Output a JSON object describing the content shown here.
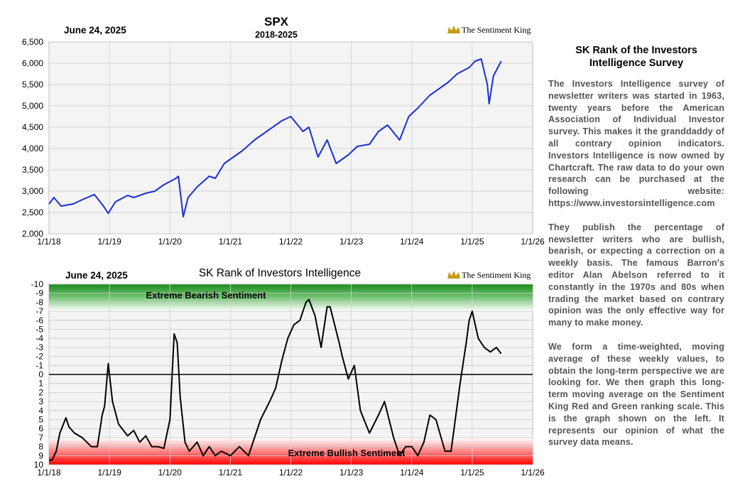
{
  "charts": [
    {
      "type": "line",
      "date_label": "June 24, 2025",
      "title": "SPX",
      "subtitle": "2018-2025",
      "brand": "The Sentiment King",
      "ylim": [
        2000,
        6500
      ],
      "yticks": [
        "2,000",
        "2,500",
        "3,000",
        "3,500",
        "4,000",
        "4,500",
        "5,000",
        "5,500",
        "6,000",
        "6,500"
      ],
      "xticks": [
        "1/1/18",
        "1/1/19",
        "1/1/20",
        "1/1/21",
        "1/1/22",
        "1/1/23",
        "1/1/24",
        "1/1/25",
        "1/1/26"
      ],
      "grid": true,
      "line_color": "#1a2fd6"
    },
    {
      "type": "line",
      "date_label": "June 24, 2025",
      "title": "SK Rank of Investors Intelligence",
      "brand": "The Sentiment King",
      "ylim": [
        -10,
        10
      ],
      "yaxis_inverted": true,
      "yticks": [
        "-10",
        "-9",
        "-8",
        "-7",
        "-6",
        "-5",
        "-4",
        "-3",
        "-2",
        "-1",
        "0",
        "1",
        "2",
        "3",
        "4",
        "5",
        "6",
        "7",
        "8",
        "9",
        "10"
      ],
      "xticks": [
        "1/1/18",
        "1/1/19",
        "1/1/20",
        "1/1/21",
        "1/1/22",
        "1/1/23",
        "1/1/24",
        "1/1/25",
        "1/1/26"
      ],
      "zone_top_label": "Extreme Bearish Sentiment",
      "zone_bottom_label": "Extreme Bullish Sentiment",
      "zone_top_color": "#1a8a1a",
      "zone_bottom_color": "#ff1a1a",
      "grid": true,
      "line_color": "#000000"
    }
  ],
  "chart_data": [
    {
      "type": "line",
      "title": "SPX",
      "subtitle": "2018-2025",
      "x_unit": "year",
      "x": [
        2018.0,
        2018.08,
        2018.2,
        2018.4,
        2018.55,
        2018.75,
        2018.9,
        2018.98,
        2019.1,
        2019.3,
        2019.4,
        2019.6,
        2019.75,
        2019.9,
        2020.1,
        2020.14,
        2020.22,
        2020.3,
        2020.45,
        2020.65,
        2020.75,
        2020.9,
        2021.0,
        2021.2,
        2021.4,
        2021.6,
        2021.85,
        2022.0,
        2022.2,
        2022.3,
        2022.45,
        2022.6,
        2022.75,
        2022.95,
        2023.1,
        2023.3,
        2023.45,
        2023.6,
        2023.8,
        2023.95,
        2024.1,
        2024.3,
        2024.5,
        2024.6,
        2024.75,
        2024.95,
        2025.05,
        2025.15,
        2025.25,
        2025.28,
        2025.35,
        2025.48
      ],
      "y": [
        2700,
        2850,
        2650,
        2700,
        2800,
        2920,
        2650,
        2480,
        2750,
        2900,
        2850,
        2950,
        3000,
        3150,
        3300,
        3350,
        2400,
        2850,
        3100,
        3350,
        3300,
        3650,
        3750,
        3950,
        4200,
        4400,
        4650,
        4750,
        4400,
        4500,
        3800,
        4200,
        3650,
        3850,
        4050,
        4100,
        4400,
        4550,
        4200,
        4750,
        4950,
        5250,
        5450,
        5550,
        5750,
        5900,
        6050,
        6100,
        5500,
        5050,
        5700,
        6050
      ],
      "ylim": [
        2000,
        6500
      ]
    },
    {
      "type": "line",
      "title": "SK Rank of Investors Intelligence",
      "x_unit": "year",
      "x": [
        2018.0,
        2018.05,
        2018.12,
        2018.18,
        2018.28,
        2018.33,
        2018.42,
        2018.55,
        2018.7,
        2018.8,
        2018.88,
        2018.92,
        2018.98,
        2019.05,
        2019.15,
        2019.3,
        2019.4,
        2019.5,
        2019.6,
        2019.7,
        2019.8,
        2019.9,
        2020.0,
        2020.07,
        2020.12,
        2020.17,
        2020.25,
        2020.32,
        2020.45,
        2020.55,
        2020.65,
        2020.75,
        2020.85,
        2021.0,
        2021.15,
        2021.3,
        2021.5,
        2021.65,
        2021.75,
        2021.85,
        2021.95,
        2022.05,
        2022.15,
        2022.25,
        2022.3,
        2022.4,
        2022.5,
        2022.6,
        2022.65,
        2022.8,
        2022.85,
        2022.95,
        2023.05,
        2023.15,
        2023.3,
        2023.45,
        2023.55,
        2023.7,
        2023.8,
        2023.9,
        2024.0,
        2024.1,
        2024.2,
        2024.3,
        2024.4,
        2024.55,
        2024.65,
        2024.8,
        2024.9,
        2024.95,
        2025.0,
        2025.1,
        2025.2,
        2025.3,
        2025.4,
        2025.48
      ],
      "y": [
        9.5,
        9.5,
        8.5,
        6.5,
        4.8,
        5.8,
        6.5,
        7.0,
        8.0,
        8.0,
        4.5,
        3.5,
        -1.2,
        3.0,
        5.5,
        6.8,
        6.2,
        7.5,
        6.8,
        8.0,
        8.0,
        8.2,
        5.0,
        -4.5,
        -3.5,
        2.5,
        7.5,
        8.5,
        7.5,
        9.0,
        8.0,
        9.0,
        8.5,
        9.0,
        8.0,
        9.0,
        5.0,
        3.0,
        1.5,
        -1.5,
        -4.0,
        -5.5,
        -6.0,
        -8.0,
        -8.3,
        -6.5,
        -3.0,
        -7.5,
        -7.5,
        -3.5,
        -2.0,
        0.5,
        -1.0,
        4.0,
        6.5,
        4.5,
        3.0,
        7.0,
        9.0,
        8.0,
        8.0,
        9.0,
        7.5,
        4.5,
        5.0,
        8.5,
        8.5,
        1.0,
        -3.5,
        -6.0,
        -7.0,
        -4.0,
        -3.0,
        -2.5,
        -3.0,
        -2.3
      ],
      "ylim": [
        -10,
        10
      ],
      "y_inverted": true
    }
  ],
  "panel": {
    "heading": "SK Rank of the Investors Intelligence Survey",
    "paragraphs": [
      "The Investors Intelligence survey of newsletter writers was started in 1963, twenty years before the American Association of Individual Investor survey. This makes it the granddaddy of all contrary opinion indicators. Investors Intelligence is now owned by Chartcraft. The raw data to do your own research can be purchased at the following website: https://www.investorsintelligence.com",
      "They publish the percentage of newsletter writers who are bullish, bearish, or expecting a correction on a weekly basis. The famous Barron's editor Alan Abelson referred to it constantly in the 1970s and 80s when trading the market based on contrary opinion was the only effective way for many to make money.",
      "We form a time-weighted, moving average of these weekly values, to obtain the long-term perspective we are looking for. We then graph this long-term moving average on the Sentiment King Red and Green ranking scale. This is the graph shown on the left. It represents our opinion of what the survey data means."
    ]
  }
}
